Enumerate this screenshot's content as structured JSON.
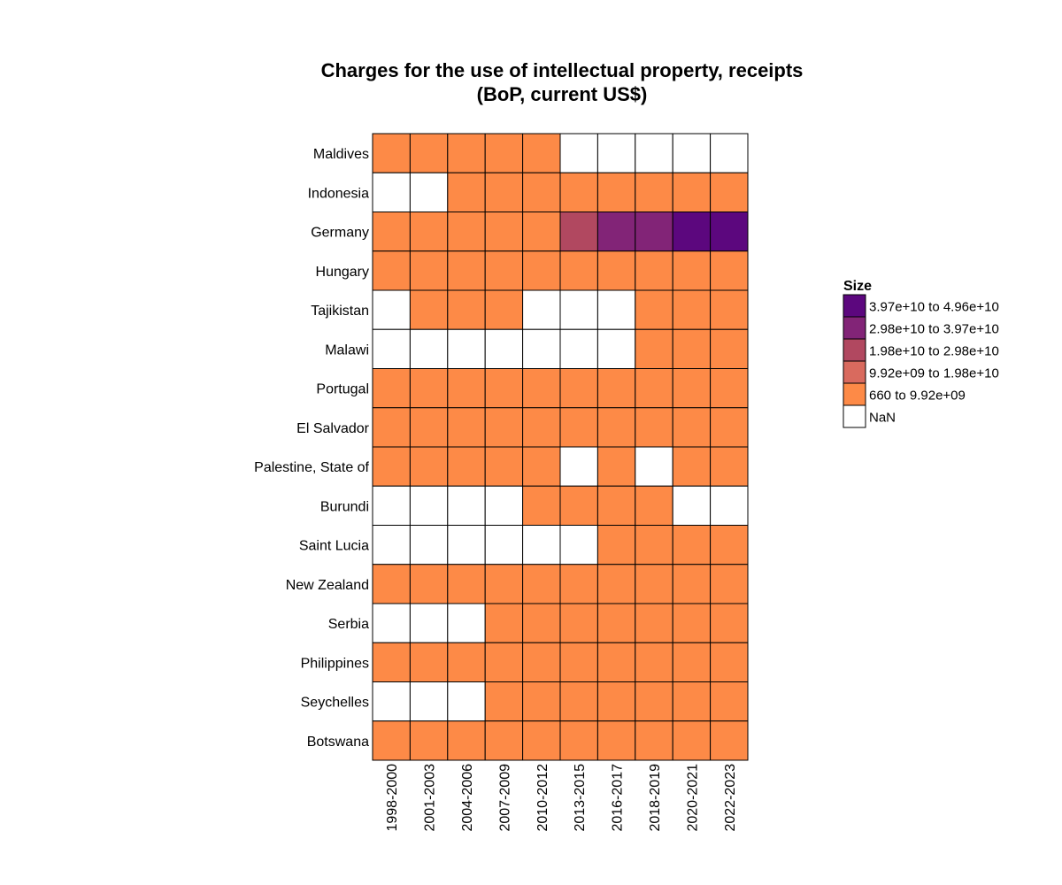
{
  "chart_data": {
    "type": "heatmap",
    "title_lines": [
      "Charges for the use of intellectual property, receipts",
      "(BoP, current US$)"
    ],
    "xlabel": "",
    "ylabel": "",
    "columns": [
      "1998-2000",
      "2001-2003",
      "2004-2006",
      "2007-2009",
      "2010-2012",
      "2013-2015",
      "2016-2017",
      "2018-2019",
      "2020-2021",
      "2022-2023"
    ],
    "rows": [
      "Maldives",
      "Indonesia",
      "Germany",
      "Hungary",
      "Tajikistan",
      "Malawi",
      "Portugal",
      "El Salvador",
      "Palestine, State of",
      "Burundi",
      "Saint Lucia",
      "New Zealand",
      "Serbia",
      "Philippines",
      "Seychelles",
      "Botswana"
    ],
    "cell_bins": [
      [
        0,
        0,
        0,
        0,
        0,
        null,
        null,
        null,
        null,
        null
      ],
      [
        null,
        null,
        0,
        0,
        0,
        0,
        0,
        0,
        0,
        0
      ],
      [
        0,
        0,
        0,
        0,
        0,
        2,
        3,
        3,
        4,
        4
      ],
      [
        0,
        0,
        0,
        0,
        0,
        0,
        0,
        0,
        0,
        0
      ],
      [
        null,
        0,
        0,
        0,
        null,
        null,
        null,
        0,
        0,
        0
      ],
      [
        null,
        null,
        null,
        null,
        null,
        null,
        null,
        0,
        0,
        0
      ],
      [
        0,
        0,
        0,
        0,
        0,
        0,
        0,
        0,
        0,
        0
      ],
      [
        0,
        0,
        0,
        0,
        0,
        0,
        0,
        0,
        0,
        0
      ],
      [
        0,
        0,
        0,
        0,
        0,
        null,
        0,
        null,
        0,
        0
      ],
      [
        null,
        null,
        null,
        null,
        0,
        0,
        0,
        0,
        null,
        null
      ],
      [
        null,
        null,
        null,
        null,
        null,
        null,
        0,
        0,
        0,
        0
      ],
      [
        0,
        0,
        0,
        0,
        0,
        0,
        0,
        0,
        0,
        0
      ],
      [
        null,
        null,
        null,
        0,
        0,
        0,
        0,
        0,
        0,
        0
      ],
      [
        0,
        0,
        0,
        0,
        0,
        0,
        0,
        0,
        0,
        0
      ],
      [
        null,
        null,
        null,
        0,
        0,
        0,
        0,
        0,
        0,
        0
      ],
      [
        0,
        0,
        0,
        0,
        0,
        0,
        0,
        0,
        0,
        0
      ]
    ],
    "legend": {
      "title": "Size",
      "placement": "right",
      "bins": [
        {
          "label": "660 to 9.92e+09",
          "color": "#fd8a47"
        },
        {
          "label": "9.92e+09 to 1.98e+10",
          "color": "#d96a5e"
        },
        {
          "label": "1.98e+10 to 2.98e+10",
          "color": "#b14860"
        },
        {
          "label": "2.98e+10 to 3.97e+10",
          "color": "#822477"
        },
        {
          "label": "3.97e+10 to 4.96e+10",
          "color": "#5c077e"
        }
      ],
      "nan": {
        "label": "NaN",
        "color": "#ffffff"
      }
    }
  }
}
